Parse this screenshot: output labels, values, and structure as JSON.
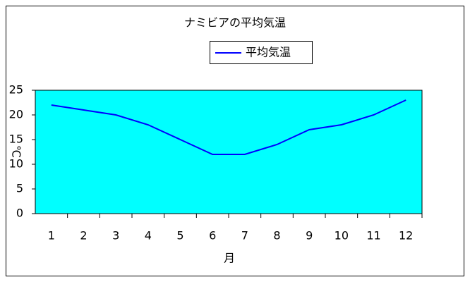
{
  "chart_data": {
    "type": "line",
    "title": "ナミビアの平均気温",
    "x_label": "月",
    "y_label": "℃",
    "categories": [
      "1",
      "2",
      "3",
      "4",
      "5",
      "6",
      "7",
      "8",
      "9",
      "10",
      "11",
      "12"
    ],
    "series": [
      {
        "name": "平均気温",
        "color": "#0000ff",
        "values": [
          22,
          21,
          20,
          18,
          15,
          12,
          12,
          14,
          17,
          18,
          20,
          23
        ]
      }
    ],
    "ylim": [
      0,
      25
    ],
    "yticks": [
      0,
      5,
      10,
      15,
      20,
      25
    ],
    "grid": false,
    "legend": "top",
    "plot_background": "#00ffff"
  }
}
